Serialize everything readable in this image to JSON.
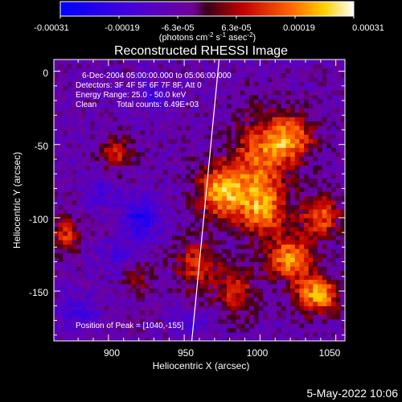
{
  "footer": {
    "date": "5-May-2022 10:06"
  },
  "colorbar": {
    "tick_labels": [
      "-0.00031",
      "-0.00019",
      "-6.3e-05",
      "6.3e-05",
      "0.00019",
      "0.00031"
    ],
    "unit_main": "(photons cm",
    "unit_exp1": "-2",
    "unit_mid": " s",
    "unit_exp2": "-1",
    "unit_tail": " asec",
    "unit_exp3": "-2",
    "unit_close": ")",
    "range": [
      -0.00031,
      0.00031
    ]
  },
  "annotation": {
    "time_range": "6-Dec-2004 05:00:00.000 to 05:06:00.000",
    "detectors": "Detectors: 3F 4F 5F 6F 7F 8F, Att 0",
    "energy": "Energy Range: 25.0 - 50.0 keV",
    "clean": "Clean",
    "counts": "Total counts: 6.49E+03",
    "peak": "Position of Peak = [1040,-155]"
  },
  "chart_data": {
    "type": "heatmap",
    "title": "Reconstructed RHESSI Image",
    "xlabel": "Heliocentric X (arcsec)",
    "ylabel": "Heliocentric Y (arcsec)",
    "xlim": [
      864,
      1056
    ],
    "ylim": [
      -184,
      8
    ],
    "x_ticks": [
      900,
      950,
      1000,
      1050
    ],
    "y_ticks": [
      0,
      -50,
      -100,
      -150
    ],
    "limb_line": {
      "x": [
        955,
        973
      ],
      "y": [
        -184,
        8
      ]
    },
    "regions": [
      {
        "name": "hot",
        "x": 1000,
        "y": -60,
        "sx": 13,
        "sy": 20,
        "a": 0.68
      },
      {
        "name": "hot",
        "x": 975,
        "y": -82,
        "sx": 11,
        "sy": 13,
        "a": 0.95
      },
      {
        "name": "hot",
        "x": 1020,
        "y": -45,
        "sx": 11,
        "sy": 11,
        "a": 0.8
      },
      {
        "name": "hot",
        "x": 1002,
        "y": -95,
        "sx": 11,
        "sy": 13,
        "a": 0.75
      },
      {
        "name": "hot",
        "x": 1020,
        "y": -128,
        "sx": 10,
        "sy": 10,
        "a": 0.9
      },
      {
        "name": "hot",
        "x": 1038,
        "y": -152,
        "sx": 10,
        "sy": 9,
        "a": 0.95
      },
      {
        "name": "hot",
        "x": 1040,
        "y": -98,
        "sx": 9,
        "sy": 11,
        "a": 0.72
      },
      {
        "name": "hot",
        "x": 958,
        "y": -132,
        "sx": 10,
        "sy": 12,
        "a": 0.55
      },
      {
        "name": "hot",
        "x": 985,
        "y": -150,
        "sx": 10,
        "sy": 12,
        "a": 0.5
      },
      {
        "name": "hot",
        "x": 905,
        "y": -55,
        "sx": 7,
        "sy": 8,
        "a": 0.55
      },
      {
        "name": "hot",
        "x": 872,
        "y": -112,
        "sx": 6,
        "sy": 9,
        "a": 0.55
      },
      {
        "name": "hot",
        "x": 918,
        "y": -140,
        "sx": 7,
        "sy": 8,
        "a": 0.38
      },
      {
        "name": "cold",
        "x": 922,
        "y": -100,
        "sx": 8,
        "sy": 10,
        "a": -0.55
      },
      {
        "name": "cold",
        "x": 908,
        "y": -128,
        "sx": 8,
        "sy": 8,
        "a": -0.3
      },
      {
        "name": "cold",
        "x": 895,
        "y": -82,
        "sx": 7,
        "sy": 8,
        "a": -0.3
      },
      {
        "name": "cold",
        "x": 930,
        "y": -18,
        "sx": 8,
        "sy": 7,
        "a": -0.3
      },
      {
        "name": "cold",
        "x": 955,
        "y": -172,
        "sx": 8,
        "sy": 6,
        "a": -0.3
      },
      {
        "name": "cold",
        "x": 880,
        "y": -165,
        "sx": 8,
        "sy": 8,
        "a": -0.35
      }
    ]
  }
}
